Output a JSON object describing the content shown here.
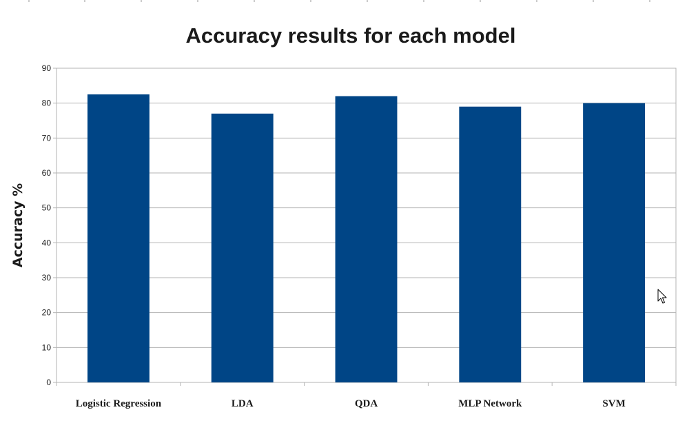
{
  "colors": {
    "bar": "#004586",
    "grid": "#b3b3b3",
    "text": "#1a1a1a",
    "background": "#ffffff"
  },
  "icons": {
    "cursor": "mouse-pointer-icon"
  },
  "chart_data": {
    "type": "bar",
    "title": "Accuracy results for each model",
    "xlabel": "",
    "ylabel": "Accuracy %",
    "categories": [
      "Logistic Regression",
      "LDA",
      "QDA",
      "MLP Network",
      "SVM"
    ],
    "series": [
      {
        "values": [
          82.5,
          77,
          82,
          79,
          80
        ]
      }
    ],
    "ylim": [
      0,
      90
    ],
    "yticks": [
      "0",
      "10",
      "20",
      "30",
      "40",
      "50",
      "60",
      "70",
      "80",
      "90"
    ],
    "grid": true,
    "legend": "none"
  }
}
